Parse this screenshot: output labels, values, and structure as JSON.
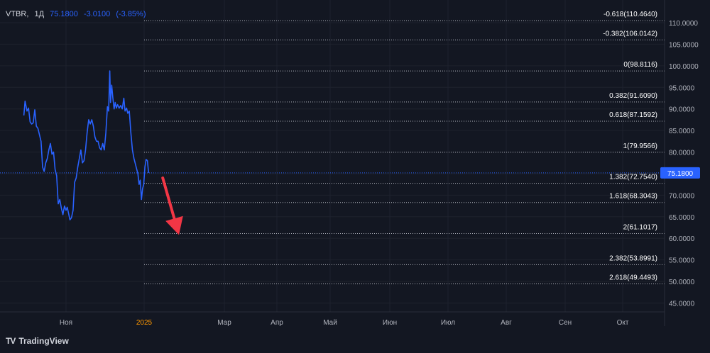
{
  "header": {
    "symbol": "VTBR",
    "separator": ",",
    "interval": "1Д",
    "last_price": "75.1800",
    "change": "-3.0100",
    "change_pct": "(-3.85%)"
  },
  "brand": {
    "name": "TradingView"
  },
  "colors": {
    "background": "#131722",
    "price_line": "#2962ff",
    "price_label_bg": "#2962ff",
    "fib_line": "#b2b5be",
    "arrow": "#f23645",
    "axis_text": "#b2b5be",
    "month_text": "#b2b5be",
    "year_text": "#ff9800"
  },
  "chart_data": {
    "type": "line",
    "title": "",
    "y_axis": {
      "side": "right",
      "range": [
        44.5,
        112.5
      ],
      "ticks": [
        110.0,
        105.0,
        100.0,
        95.0,
        90.0,
        85.0,
        80.0,
        75.0,
        70.0,
        65.0,
        60.0,
        55.0,
        50.0,
        45.0
      ],
      "tick_labels": [
        "110.0000",
        "105.0000",
        "100.0000",
        "95.0000",
        "90.0000",
        "85.0000",
        "80.0000",
        "75.0000",
        "70.0000",
        "65.0000",
        "60.0000",
        "55.0000",
        "50.0000",
        "45.0000"
      ]
    },
    "x_axis": {
      "labels": [
        {
          "text": "Ноя",
          "month": 0,
          "year_style": false
        },
        {
          "text": "2025",
          "month": 2,
          "year_style": true
        },
        {
          "text": "Мар",
          "month": 4,
          "year_style": false
        },
        {
          "text": "Апр",
          "month": 5,
          "year_style": false
        },
        {
          "text": "Май",
          "month": 6,
          "year_style": false
        },
        {
          "text": "Июн",
          "month": 7,
          "year_style": false
        },
        {
          "text": "Июл",
          "month": 8,
          "year_style": false
        },
        {
          "text": "Авг",
          "month": 9,
          "year_style": false
        },
        {
          "text": "Сен",
          "month": 10,
          "year_style": false
        },
        {
          "text": "Окт",
          "month": 11,
          "year_style": false
        }
      ]
    },
    "current_price": 75.18,
    "current_price_label": "75.1800",
    "series": [
      {
        "color": "#2962ff",
        "points": [
          [
            -1.08,
            88.5
          ],
          [
            -1.05,
            91.8
          ],
          [
            -1.0,
            89.5
          ],
          [
            -0.96,
            90.2
          ],
          [
            -0.92,
            87.0
          ],
          [
            -0.88,
            86.5
          ],
          [
            -0.84,
            86.8
          ],
          [
            -0.8,
            89.8
          ],
          [
            -0.76,
            86.0
          ],
          [
            -0.72,
            85.5
          ],
          [
            -0.68,
            84.0
          ],
          [
            -0.64,
            82.5
          ],
          [
            -0.6,
            76.5
          ],
          [
            -0.56,
            75.5
          ],
          [
            -0.52,
            77.5
          ],
          [
            -0.48,
            78.5
          ],
          [
            -0.44,
            80.5
          ],
          [
            -0.4,
            82.0
          ],
          [
            -0.36,
            79.5
          ],
          [
            -0.32,
            80.0
          ],
          [
            -0.28,
            76.0
          ],
          [
            -0.24,
            74.5
          ],
          [
            -0.2,
            68.0
          ],
          [
            -0.16,
            69.0
          ],
          [
            -0.12,
            67.0
          ],
          [
            -0.08,
            65.5
          ],
          [
            -0.04,
            67.5
          ],
          [
            0.0,
            66.5
          ],
          [
            0.03,
            67.2
          ],
          [
            0.06,
            66.0
          ],
          [
            0.1,
            64.3
          ],
          [
            0.14,
            64.8
          ],
          [
            0.18,
            66.5
          ],
          [
            0.22,
            73.0
          ],
          [
            0.26,
            74.0
          ],
          [
            0.3,
            76.5
          ],
          [
            0.34,
            78.5
          ],
          [
            0.38,
            80.5
          ],
          [
            0.42,
            77.5
          ],
          [
            0.46,
            78.0
          ],
          [
            0.5,
            80.5
          ],
          [
            0.54,
            84.5
          ],
          [
            0.58,
            87.5
          ],
          [
            0.62,
            86.5
          ],
          [
            0.66,
            87.5
          ],
          [
            0.7,
            86.0
          ],
          [
            0.74,
            83.5
          ],
          [
            0.78,
            82.5
          ],
          [
            0.82,
            82.5
          ],
          [
            0.86,
            81.0
          ],
          [
            0.9,
            80.5
          ],
          [
            0.94,
            82.0
          ],
          [
            0.98,
            80.5
          ],
          [
            1.02,
            84.5
          ],
          [
            1.06,
            90.5
          ],
          [
            1.09,
            89.5
          ],
          [
            1.12,
            98.8
          ],
          [
            1.14,
            91.5
          ],
          [
            1.17,
            95.5
          ],
          [
            1.2,
            92.5
          ],
          [
            1.23,
            90.0
          ],
          [
            1.26,
            91.5
          ],
          [
            1.29,
            90.2
          ],
          [
            1.32,
            91.0
          ],
          [
            1.36,
            90.2
          ],
          [
            1.4,
            90.8
          ],
          [
            1.44,
            90.0
          ],
          [
            1.48,
            92.5
          ],
          [
            1.51,
            89.5
          ],
          [
            1.55,
            90.2
          ],
          [
            1.58,
            89.0
          ],
          [
            1.62,
            89.5
          ],
          [
            1.66,
            84.5
          ],
          [
            1.7,
            80.5
          ],
          [
            1.74,
            78.5
          ],
          [
            1.77,
            77.5
          ],
          [
            1.81,
            76.0
          ],
          [
            1.84,
            75.0
          ],
          [
            1.87,
            72.5
          ],
          [
            1.9,
            73.5
          ],
          [
            1.93,
            69.0
          ],
          [
            1.96,
            71.5
          ],
          [
            1.99,
            72.5
          ],
          [
            2.02,
            76.5
          ],
          [
            2.05,
            78.3
          ],
          [
            2.08,
            78.0
          ],
          [
            2.11,
            75.18
          ]
        ]
      }
    ],
    "fib_levels": [
      {
        "ratio": "-0.618",
        "price": 110.464,
        "label": "-0.618(110.4640)"
      },
      {
        "ratio": "-0.382",
        "price": 106.0142,
        "label": "-0.382(106.0142)"
      },
      {
        "ratio": "0",
        "price": 98.8116,
        "label": "0(98.8116)"
      },
      {
        "ratio": "0.382",
        "price": 91.609,
        "label": "0.382(91.6090)"
      },
      {
        "ratio": "0.618",
        "price": 87.1592,
        "label": "0.618(87.1592)"
      },
      {
        "ratio": "1",
        "price": 79.9566,
        "label": "1(79.9566)"
      },
      {
        "ratio": "1.382",
        "price": 72.754,
        "label": "1.382(72.7540)"
      },
      {
        "ratio": "1.618",
        "price": 68.3043,
        "label": "1.618(68.3043)"
      },
      {
        "ratio": "2",
        "price": 61.1017,
        "label": "2(61.1017)"
      },
      {
        "ratio": "2.382",
        "price": 53.8991,
        "label": "2.382(53.8991)"
      },
      {
        "ratio": "2.618",
        "price": 49.4493,
        "label": "2.618(49.4493)"
      }
    ],
    "annotation": {
      "type": "arrow",
      "from": [
        2.46,
        74.0
      ],
      "to": [
        2.86,
        60.8
      ]
    },
    "grid": true,
    "legend": "none"
  }
}
